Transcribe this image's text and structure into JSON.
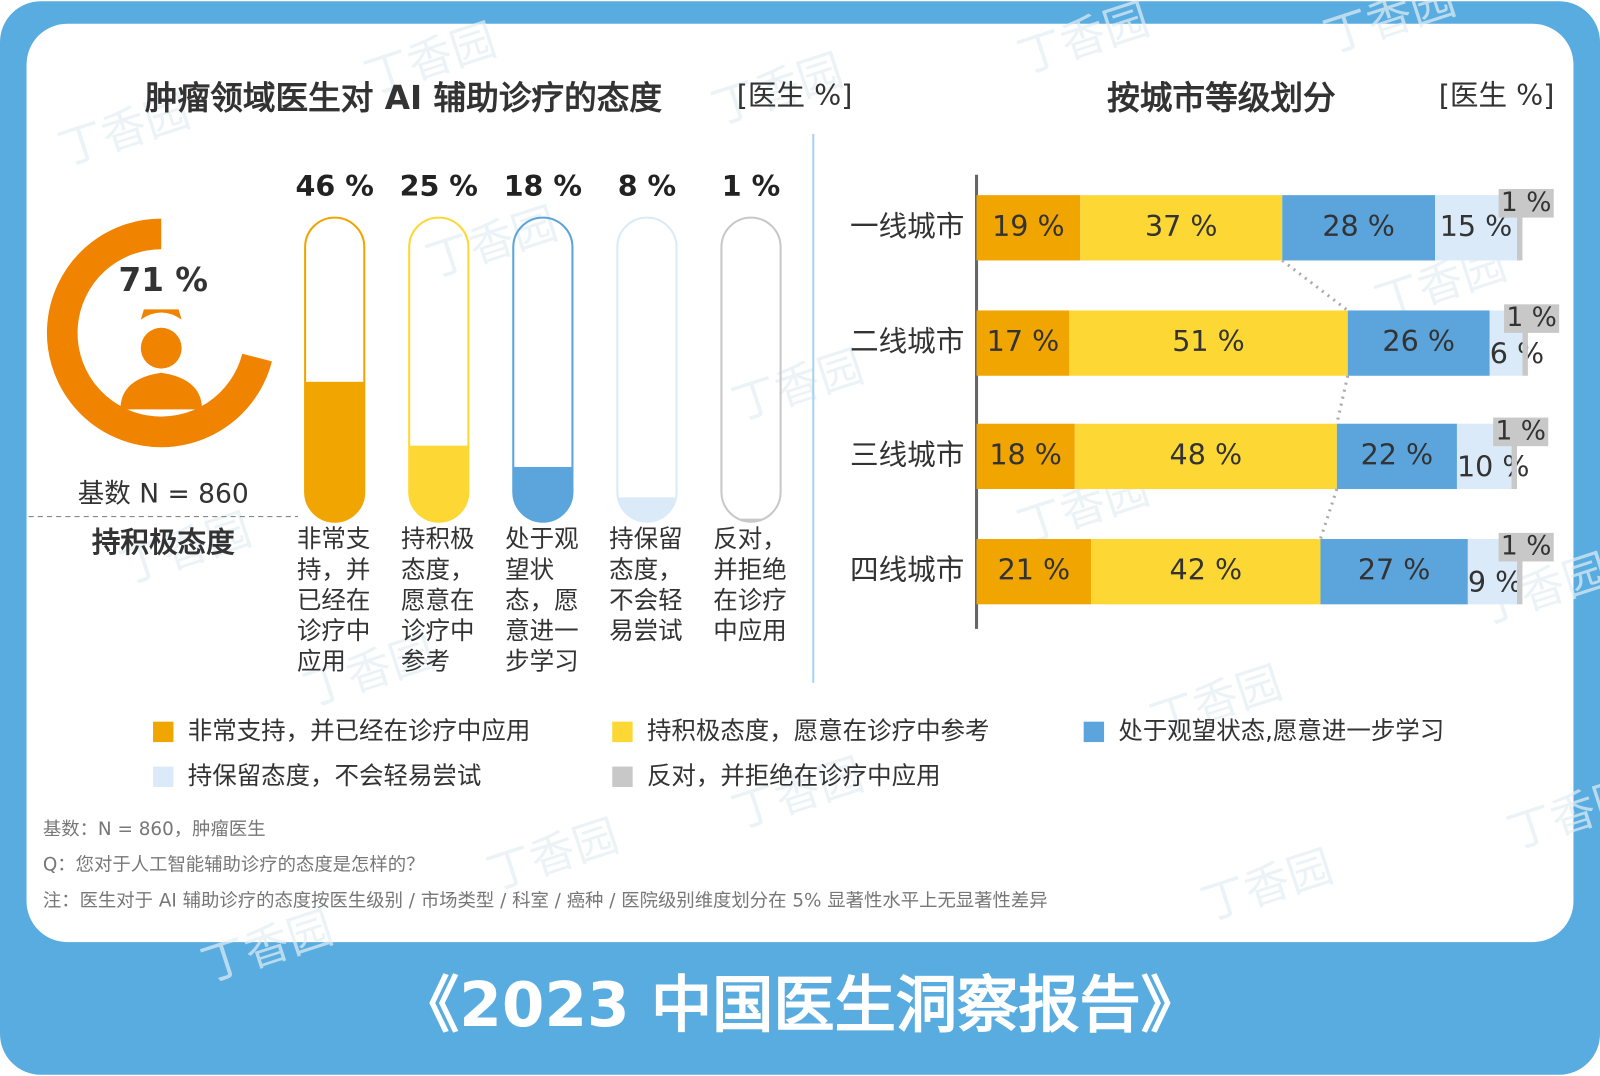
{
  "page": {
    "footer": "《2023 中国医生洞察报告》",
    "watermark": "丁香园",
    "notes": [
      "基数：N = 860，肿瘤医生",
      "Q：您对于人工智能辅助诊疗的态度是怎样的？",
      "注：医生对于 AI 辅助诊疗的态度按医生级别 / 市场类型 / 科室 / 癌种 / 医院级别维度划分在 5% 显著性水平上无显著性差异"
    ]
  },
  "chart_data": [
    {
      "type": "donut",
      "value": 71,
      "value_label": "71 %",
      "color": "#f08300",
      "ylim": [
        0,
        100
      ],
      "base": "基数 N = 860",
      "label": "持积极态度"
    },
    {
      "type": "bar",
      "title": "肿瘤领域医生对 AI 辅助诊疗的态度",
      "unit": "[医生 %]",
      "categories": [
        "非常支持，并已经在诊疗中应用",
        "持积极态度，愿意在诊疗中参考",
        "处于观望状态，愿意进一步学习",
        "持保留态度，不会轻易尝试",
        "反对，并拒绝在诊疗中应用"
      ],
      "values": [
        46,
        25,
        18,
        8,
        1
      ],
      "value_labels": [
        "46 %",
        "25 %",
        "18 %",
        "8 %",
        "1 %"
      ],
      "colors": [
        "#f0a500",
        "#fdd835",
        "#5ba4dc",
        "#dbeaf8",
        "#c8c8c8"
      ],
      "ylim": [
        0,
        100
      ]
    },
    {
      "type": "stacked_bar",
      "title": "按城市等级划分",
      "unit": "[医生 %]",
      "categories": [
        "一线城市",
        "二线城市",
        "三线城市",
        "四线城市"
      ],
      "xlim": [
        0,
        100
      ],
      "series": [
        {
          "name": "非常支持，并已经在诊疗中应用",
          "color": "#f0a500",
          "values": [
            19,
            17,
            18,
            21
          ],
          "value_labels": [
            "19 %",
            "17 %",
            "18 %",
            "21 %"
          ]
        },
        {
          "name": "持积极态度，愿意在诊疗中参考",
          "color": "#fdd835",
          "values": [
            37,
            51,
            48,
            42
          ],
          "value_labels": [
            "37 %",
            "51 %",
            "48 %",
            "42 %"
          ]
        },
        {
          "name": "处于观望状态,愿意进一步学习",
          "color": "#5ba4dc",
          "values": [
            28,
            26,
            22,
            27
          ],
          "value_labels": [
            "28 %",
            "26 %",
            "22 %",
            "27 %"
          ]
        },
        {
          "name": "持保留态度，不会轻易尝试",
          "color": "#dbeaf8",
          "values": [
            15,
            6,
            10,
            9
          ],
          "value_labels": [
            "15 %",
            "6 %",
            "10 %",
            "9 %"
          ]
        },
        {
          "name": "反对，并拒绝在诊疗中应用",
          "color": "#c8c8c8",
          "values": [
            1,
            1,
            1,
            1
          ],
          "value_labels": [
            "1 %",
            "1 %",
            "1 %",
            "1 %"
          ]
        }
      ]
    }
  ]
}
